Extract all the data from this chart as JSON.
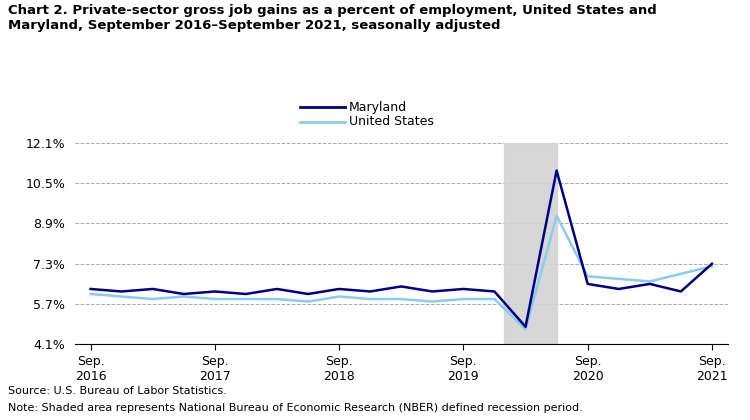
{
  "title_line1": "Chart 2. Private-sector gross job gains as a percent of employment, United States and",
  "title_line2": "Maryland, September 2016–September 2021, seasonally adjusted",
  "source_note": "Source: U.S. Bureau of Labor Statistics.",
  "note_line": "Note: Shaded area represents National Bureau of Economic Research (NBER) defined recession period.",
  "ylim": [
    4.1,
    12.1
  ],
  "yticks": [
    4.1,
    5.7,
    7.3,
    8.9,
    10.5,
    12.1
  ],
  "ytick_labels": [
    "4.1%",
    "5.7%",
    "7.3%",
    "8.9%",
    "10.5%",
    "12.1%"
  ],
  "maryland_color": "#00008B",
  "us_color": "#87CEEB",
  "maryland_data": [
    6.3,
    6.2,
    6.3,
    6.1,
    6.2,
    6.1,
    6.3,
    6.1,
    6.3,
    6.2,
    6.4,
    6.2,
    6.3,
    6.2,
    4.8,
    11.0,
    6.5,
    6.3,
    6.5,
    6.2,
    7.3
  ],
  "us_data": [
    6.1,
    6.0,
    5.9,
    6.0,
    5.9,
    5.9,
    5.9,
    5.8,
    6.0,
    5.9,
    5.9,
    5.8,
    5.9,
    5.9,
    4.7,
    9.2,
    6.8,
    6.7,
    6.6,
    6.9,
    7.2
  ],
  "xtick_positions": [
    0,
    4,
    8,
    12,
    16,
    20
  ],
  "xtick_labels": [
    "Sep.\n2016",
    "Sep.\n2017",
    "Sep.\n2018",
    "Sep.\n2019",
    "Sep.\n2020",
    "Sep.\n2021"
  ],
  "recession_start": 13.3,
  "recession_end": 15.0,
  "recession_color": "#D3D3D3",
  "grid_color": "#AAAAAA",
  "grid_linestyle": "--",
  "grid_linewidth": 0.7,
  "line_linewidth": 1.8
}
